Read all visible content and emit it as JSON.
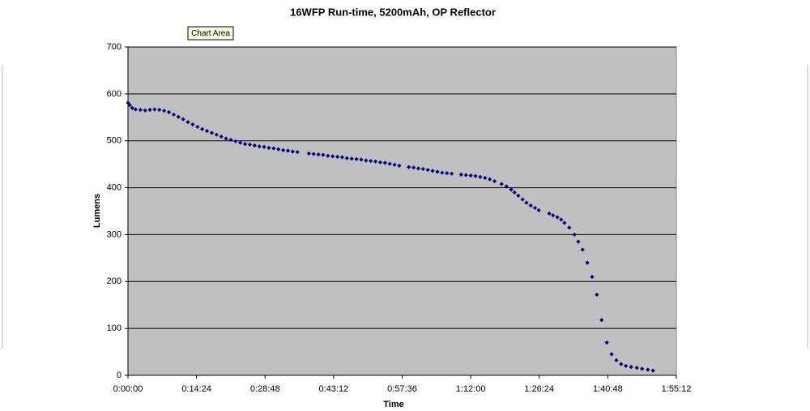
{
  "chart_data": {
    "type": "scatter",
    "title": "16WFP Run-time, 5200mAh, OP Reflector",
    "x_label": "Time",
    "y_label": "Lumens",
    "tooltip": "Chart Area",
    "color": "#000080",
    "plot_background": "#c0c0c0",
    "grid": true,
    "xlim": [
      0,
      115.2
    ],
    "ylim": [
      0,
      700
    ],
    "xticks": [
      {
        "value": 0,
        "label": "0:00:00"
      },
      {
        "value": 14.4,
        "label": "0:14:24"
      },
      {
        "value": 28.8,
        "label": "0:28:48"
      },
      {
        "value": 43.2,
        "label": "0:43:12"
      },
      {
        "value": 57.6,
        "label": "0:57:36"
      },
      {
        "value": 72,
        "label": "1:12:00"
      },
      {
        "value": 86.4,
        "label": "1:26:24"
      },
      {
        "value": 100.8,
        "label": "1:40:48"
      },
      {
        "value": 115.2,
        "label": "1:55:12"
      }
    ],
    "yticks": [
      0,
      100,
      200,
      300,
      400,
      500,
      600,
      700
    ],
    "x": [
      0,
      0.4,
      0.9,
      1.6,
      2.6,
      3.6,
      4.6,
      5.6,
      6.6,
      7.6,
      8.6,
      9.6,
      10.6,
      11.6,
      12.6,
      13.6,
      14.6,
      15.6,
      16.6,
      17.6,
      18.6,
      19.6,
      20.6,
      21.6,
      22.6,
      23.6,
      24.6,
      25.6,
      26.6,
      27.6,
      28.6,
      29.6,
      30.6,
      31.6,
      32.6,
      33.6,
      34.6,
      35.6,
      38,
      39,
      40,
      41,
      42,
      43,
      44,
      45,
      46,
      47,
      48,
      49,
      50,
      51,
      52,
      53,
      54,
      55,
      56,
      57,
      59,
      60,
      61,
      62,
      63,
      64,
      65,
      66,
      67,
      68,
      70,
      71,
      72,
      73,
      74,
      75,
      76,
      77,
      78.5,
      79.5,
      80.5,
      81.2,
      82,
      82.9,
      83.7,
      84.6,
      85.5,
      86.3,
      88.5,
      89.3,
      90.2,
      91,
      91.7,
      92.7,
      93.8,
      94.6,
      95.5,
      96.5,
      97.5,
      98.5,
      99.5,
      100.6,
      101.6,
      102.6,
      103.6,
      104.6,
      105.7,
      106.9,
      108,
      109.2,
      110.3
    ],
    "values": [
      581,
      576,
      570,
      567,
      566,
      565,
      566,
      567,
      566,
      564,
      561,
      556,
      551,
      546,
      540,
      535,
      530,
      525,
      521,
      517,
      513,
      509,
      505,
      502,
      499,
      496,
      493,
      492,
      490,
      488,
      487,
      485,
      484,
      482,
      480,
      479,
      477,
      476,
      473,
      472,
      471,
      470,
      468,
      467,
      466,
      465,
      463,
      462,
      461,
      460,
      458,
      457,
      456,
      454,
      453,
      451,
      449,
      447,
      444,
      443,
      441,
      440,
      438,
      436,
      434,
      432,
      431,
      430,
      428,
      427,
      426,
      425,
      423,
      421,
      418,
      414,
      408,
      403,
      396,
      390,
      383,
      375,
      368,
      362,
      357,
      352,
      345,
      341,
      337,
      332,
      325,
      315,
      300,
      285,
      268,
      240,
      210,
      172,
      118,
      70,
      45,
      32,
      24,
      20,
      18,
      16,
      14,
      12,
      10
    ]
  }
}
